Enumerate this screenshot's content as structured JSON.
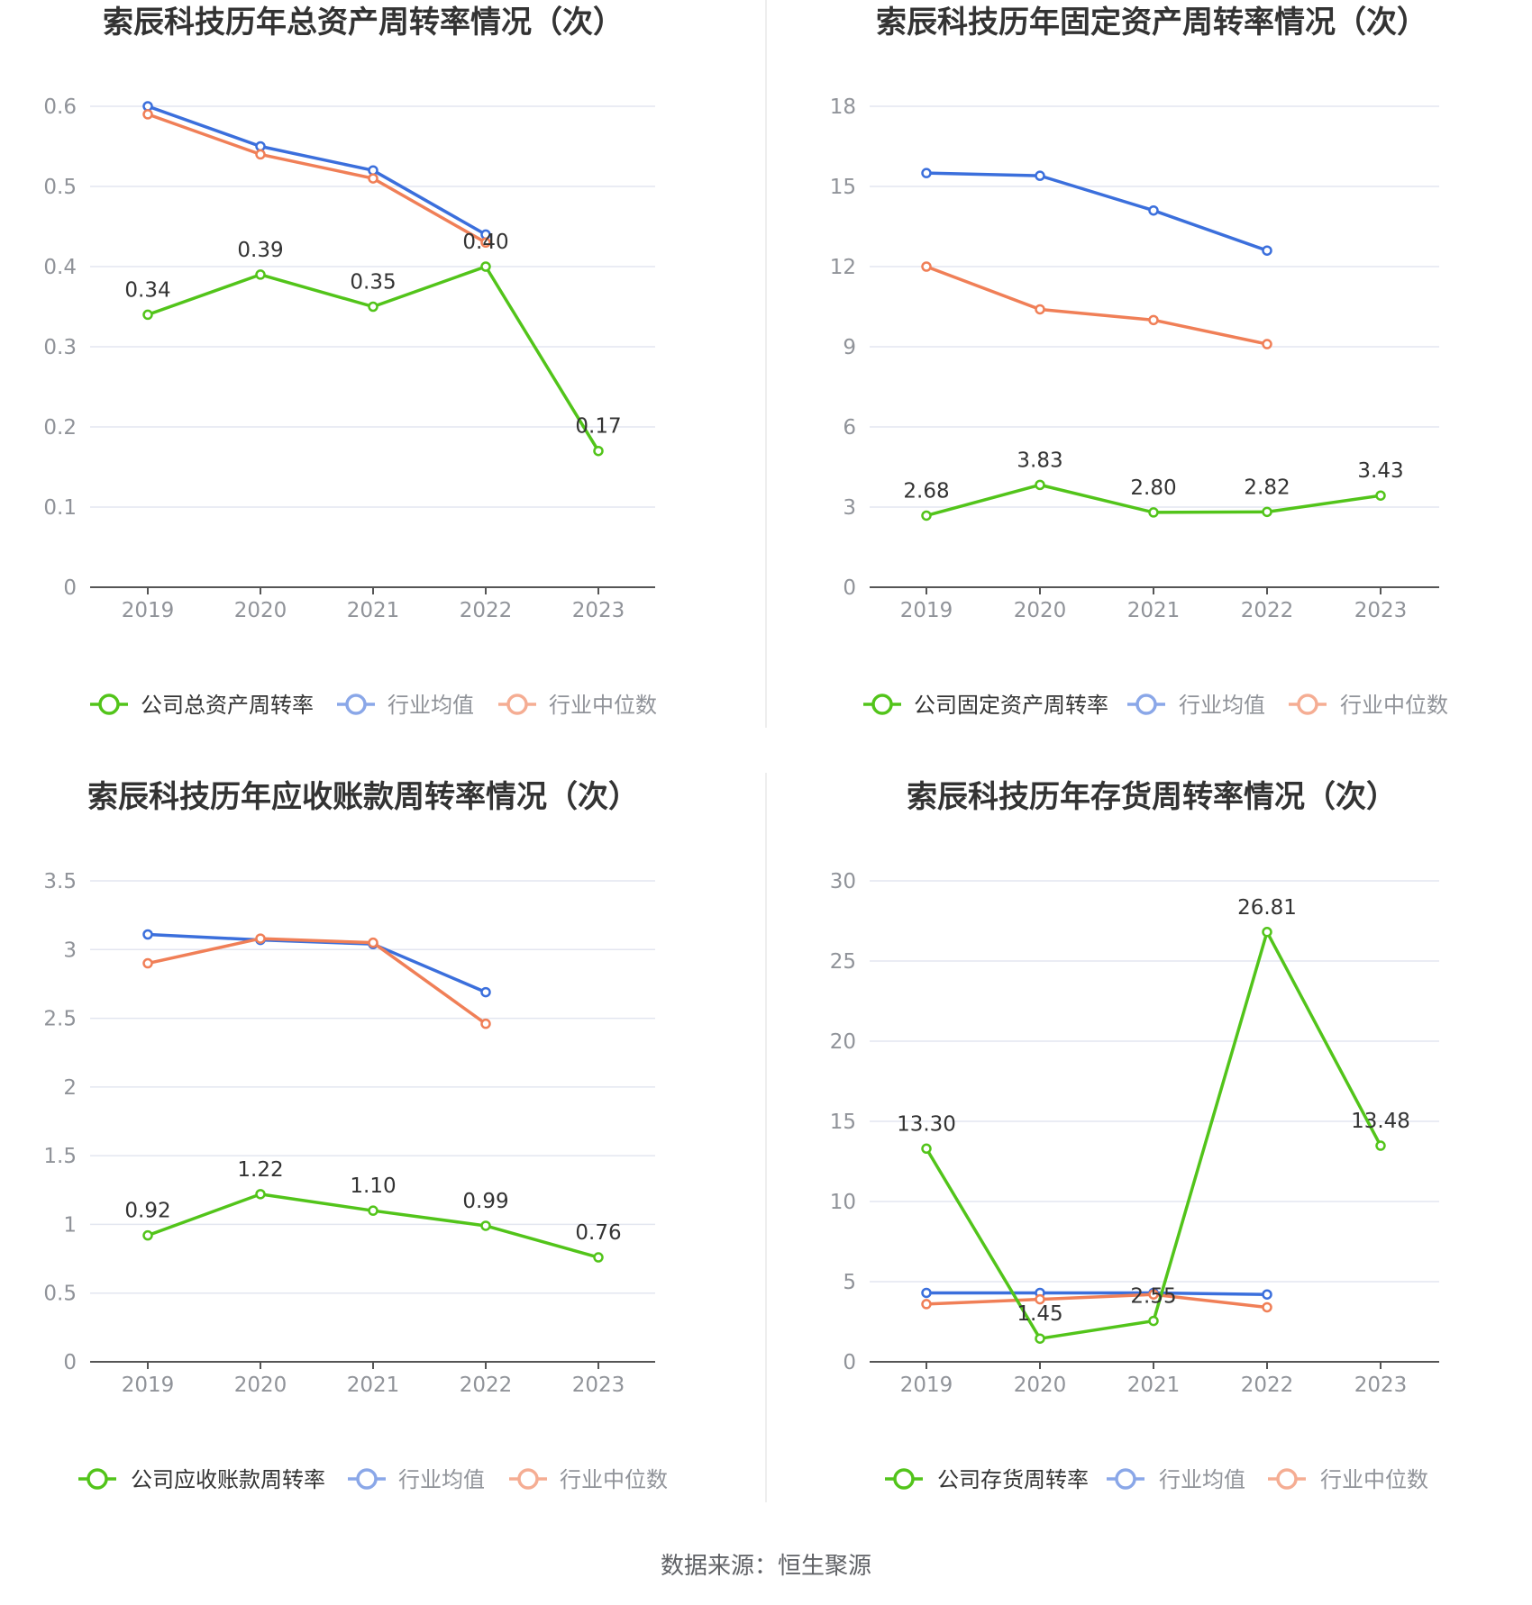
{
  "colors": {
    "company": "#52c41a",
    "industry_avg": "#3b6fdc",
    "industry_median": "#f07f57",
    "grid": "#e3e6f0",
    "axis": "#555555"
  },
  "source": "数据来源：恒生聚源",
  "chart_data": [
    {
      "type": "line",
      "title": "索辰科技历年总资产周转率情况（次）",
      "categories": [
        "2019",
        "2020",
        "2021",
        "2022",
        "2023"
      ],
      "yticks": [
        "0",
        "0.1",
        "0.2",
        "0.3",
        "0.4",
        "0.5",
        "0.6"
      ],
      "ylim": [
        0,
        0.6
      ],
      "series": [
        {
          "name": "公司总资产周转率",
          "role": "company",
          "values": [
            0.34,
            0.39,
            0.35,
            0.4,
            0.17
          ],
          "labels": [
            "0.34",
            "0.39",
            "0.35",
            "0.40",
            "0.17"
          ]
        },
        {
          "name": "行业均值",
          "role": "industry_avg",
          "values": [
            0.6,
            0.55,
            0.52,
            0.44,
            null
          ]
        },
        {
          "name": "行业中位数",
          "role": "industry_median",
          "values": [
            0.59,
            0.54,
            0.51,
            0.43,
            null
          ]
        }
      ]
    },
    {
      "type": "line",
      "title": "索辰科技历年固定资产周转率情况（次）",
      "categories": [
        "2019",
        "2020",
        "2021",
        "2022",
        "2023"
      ],
      "yticks": [
        "0",
        "3",
        "6",
        "9",
        "12",
        "15",
        "18"
      ],
      "ylim": [
        0,
        18
      ],
      "series": [
        {
          "name": "公司固定资产周转率",
          "role": "company",
          "values": [
            2.68,
            3.83,
            2.8,
            2.82,
            3.43
          ],
          "labels": [
            "2.68",
            "3.83",
            "2.80",
            "2.82",
            "3.43"
          ]
        },
        {
          "name": "行业均值",
          "role": "industry_avg",
          "values": [
            15.5,
            15.4,
            14.1,
            12.6,
            null
          ]
        },
        {
          "name": "行业中位数",
          "role": "industry_median",
          "values": [
            12.0,
            10.4,
            10.0,
            9.1,
            null
          ]
        }
      ]
    },
    {
      "type": "line",
      "title": "索辰科技历年应收账款周转率情况（次）",
      "categories": [
        "2019",
        "2020",
        "2021",
        "2022",
        "2023"
      ],
      "yticks": [
        "0",
        "0.5",
        "1",
        "1.5",
        "2",
        "2.5",
        "3",
        "3.5"
      ],
      "ylim": [
        0,
        3.5
      ],
      "series": [
        {
          "name": "公司应收账款周转率",
          "role": "company",
          "values": [
            0.92,
            1.22,
            1.1,
            0.99,
            0.76
          ],
          "labels": [
            "0.92",
            "1.22",
            "1.10",
            "0.99",
            "0.76"
          ]
        },
        {
          "name": "行业均值",
          "role": "industry_avg",
          "values": [
            3.11,
            3.07,
            3.04,
            2.69,
            null
          ]
        },
        {
          "name": "行业中位数",
          "role": "industry_median",
          "values": [
            2.9,
            3.08,
            3.05,
            2.46,
            null
          ]
        }
      ]
    },
    {
      "type": "line",
      "title": "索辰科技历年存货周转率情况（次）",
      "categories": [
        "2019",
        "2020",
        "2021",
        "2022",
        "2023"
      ],
      "yticks": [
        "0",
        "5",
        "10",
        "15",
        "20",
        "25",
        "30"
      ],
      "ylim": [
        0,
        30
      ],
      "series": [
        {
          "name": "公司存货周转率",
          "role": "company",
          "values": [
            13.3,
            1.45,
            2.55,
            26.81,
            13.48
          ],
          "labels": [
            "13.30",
            "1.45",
            "2.55",
            "26.81",
            "13.48"
          ]
        },
        {
          "name": "行业均值",
          "role": "industry_avg",
          "values": [
            4.3,
            4.3,
            4.3,
            4.2,
            null
          ]
        },
        {
          "name": "行业中位数",
          "role": "industry_median",
          "values": [
            3.6,
            3.9,
            4.2,
            3.4,
            null
          ]
        }
      ]
    }
  ]
}
